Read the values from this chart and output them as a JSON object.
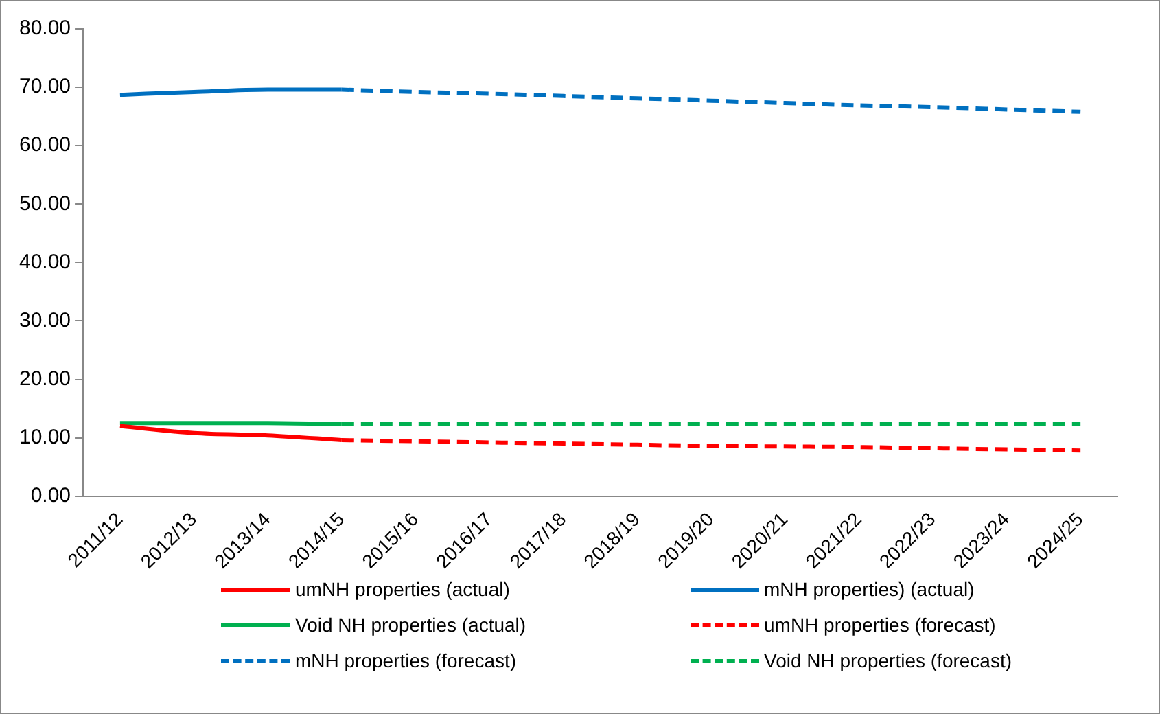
{
  "chart_data": {
    "type": "line",
    "categories": [
      "2011/12",
      "2012/13",
      "2013/14",
      "2014/15",
      "2015/16",
      "2016/17",
      "2017/18",
      "2018/19",
      "2019/20",
      "2020/21",
      "2021/22",
      "2022/23",
      "2023/24",
      "2024/25"
    ],
    "ylim": [
      0,
      80
    ],
    "yticks": [
      {
        "value": 0,
        "label": "0.00"
      },
      {
        "value": 10,
        "label": "10.00"
      },
      {
        "value": 20,
        "label": "20.00"
      },
      {
        "value": 30,
        "label": "30.00"
      },
      {
        "value": 40,
        "label": "40.00"
      },
      {
        "value": 50,
        "label": "50.00"
      },
      {
        "value": 60,
        "label": "60.00"
      },
      {
        "value": 70,
        "label": "70.00"
      },
      {
        "value": 80,
        "label": "80.00"
      }
    ],
    "grid": false,
    "legend": "bottom",
    "marker": "none",
    "series": [
      {
        "name": "umNH properties (actual)",
        "color": "#ff0000",
        "line_style": "solid",
        "values": [
          12.0,
          10.8,
          10.4,
          9.6,
          null,
          null,
          null,
          null,
          null,
          null,
          null,
          null,
          null,
          null
        ]
      },
      {
        "name": "mNH properties) (actual)",
        "color": "#0070c0",
        "line_style": "solid",
        "values": [
          68.7,
          69.2,
          69.6,
          69.6,
          null,
          null,
          null,
          null,
          null,
          null,
          null,
          null,
          null,
          null
        ]
      },
      {
        "name": "Void NH properties (actual)",
        "color": "#00b050",
        "line_style": "solid",
        "values": [
          12.5,
          12.5,
          12.5,
          12.3,
          null,
          null,
          null,
          null,
          null,
          null,
          null,
          null,
          null,
          null
        ]
      },
      {
        "name": "umNH properties (forecast)",
        "color": "#ff0000",
        "line_style": "dashed",
        "values": [
          null,
          null,
          null,
          9.6,
          9.4,
          9.2,
          9.0,
          8.8,
          8.6,
          8.5,
          8.4,
          8.2,
          8.0,
          7.8
        ]
      },
      {
        "name": "mNH properties (forecast)",
        "color": "#0070c0",
        "line_style": "dashed",
        "values": [
          null,
          null,
          null,
          69.6,
          69.2,
          68.9,
          68.5,
          68.1,
          67.7,
          67.3,
          66.9,
          66.6,
          66.2,
          65.8
        ]
      },
      {
        "name": "Void NH properties (forecast)",
        "color": "#00b050",
        "line_style": "dashed",
        "values": [
          null,
          null,
          null,
          12.3,
          12.3,
          12.3,
          12.3,
          12.3,
          12.3,
          12.3,
          12.3,
          12.3,
          12.3,
          12.3
        ]
      }
    ]
  }
}
